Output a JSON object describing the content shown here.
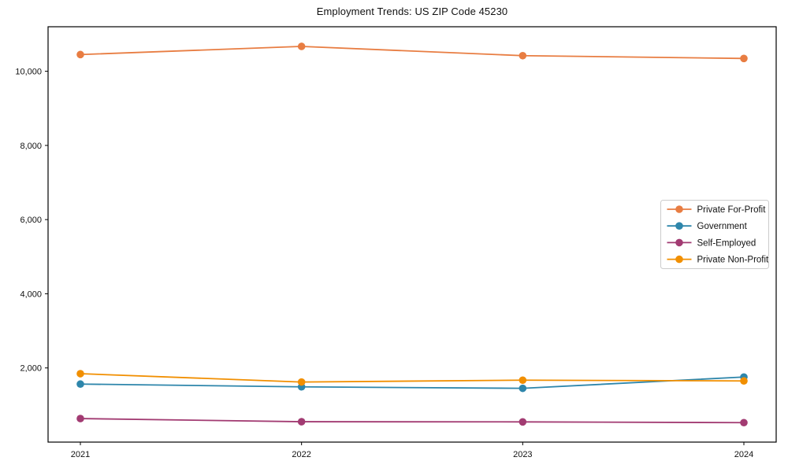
{
  "chart_data": {
    "type": "line",
    "title": "Employment Trends: US ZIP Code 45230",
    "xlabel": "",
    "ylabel": "",
    "x": [
      "2021",
      "2022",
      "2023",
      "2024"
    ],
    "series": [
      {
        "name": "Private For-Profit",
        "color": "#E87D42",
        "values": [
          10450,
          10670,
          10420,
          10345
        ]
      },
      {
        "name": "Government",
        "color": "#2E86AB",
        "values": [
          1565,
          1490,
          1450,
          1755
        ]
      },
      {
        "name": "Self-Employed",
        "color": "#A23B72",
        "values": [
          635,
          550,
          545,
          525
        ]
      },
      {
        "name": "Private Non-Profit",
        "color": "#F18F01",
        "values": [
          1845,
          1620,
          1670,
          1650
        ]
      }
    ],
    "yticks": [
      2000,
      4000,
      6000,
      8000,
      10000
    ],
    "ytick_labels": [
      "2,000",
      "4,000",
      "6,000",
      "8,000",
      "10,000"
    ],
    "ylim": [
      0,
      11200
    ],
    "grid": false,
    "legend_position": "center-right",
    "frame_color": "#000000",
    "legend_border_color": "#cccccc",
    "marker": "circle"
  }
}
